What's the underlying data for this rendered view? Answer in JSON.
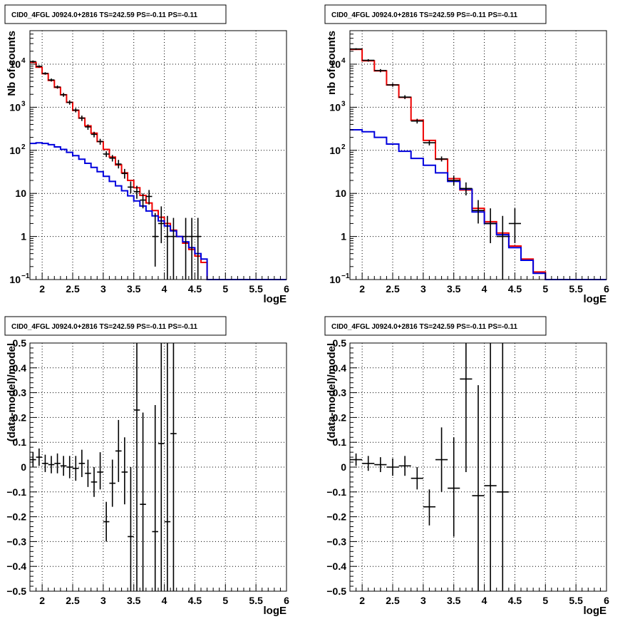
{
  "colors": {
    "model_total": "#ee0000",
    "model_component": "#0000dd",
    "data": "#000000",
    "grid": "#000000"
  },
  "chart_data": [
    {
      "type": "histogram-step",
      "title": "CID0_4FGL J0924.0+2816 TS=242.59 PS=-0.11 PS=-0.11",
      "xlabel": "logE",
      "ylabel": "Nb of counts",
      "log_y": true,
      "grid": true,
      "xlim": [
        1.8,
        6.0
      ],
      "ylim": [
        0.1,
        60000
      ],
      "x_ticks": [
        {
          "v": 2,
          "t": "2"
        },
        {
          "v": 2.5,
          "t": "2.5"
        },
        {
          "v": 3,
          "t": "3"
        },
        {
          "v": 3.5,
          "t": "3.5"
        },
        {
          "v": 4,
          "t": "4"
        },
        {
          "v": 4.5,
          "t": "4.5"
        },
        {
          "v": 5,
          "t": "5"
        },
        {
          "v": 5.5,
          "t": "5.5"
        },
        {
          "v": 6,
          "t": "6"
        }
      ],
      "y_ticks": [
        {
          "v": 0.1,
          "t": "10",
          "e": "−1"
        },
        {
          "v": 1,
          "t": "1"
        },
        {
          "v": 10,
          "t": "10"
        },
        {
          "v": 100,
          "t": "10",
          "e": "2"
        },
        {
          "v": 1000,
          "t": "10",
          "e": "3"
        },
        {
          "v": 10000,
          "t": "10",
          "e": "4"
        }
      ],
      "bin_edges": [
        1.8,
        1.9,
        2.0,
        2.1,
        2.2,
        2.3,
        2.4,
        2.5,
        2.6,
        2.7,
        2.8,
        2.9,
        3.0,
        3.1,
        3.2,
        3.3,
        3.4,
        3.5,
        3.6,
        3.7,
        3.8,
        3.9,
        4.0,
        4.1,
        4.2,
        4.3,
        4.4,
        4.5,
        4.6,
        4.7,
        4.8,
        4.9,
        5.0,
        5.1,
        5.2,
        5.3,
        5.4,
        5.5,
        5.6,
        5.7,
        5.8,
        5.9,
        6.0
      ],
      "series": [
        {
          "role": "total",
          "values": [
            11000,
            8500,
            6000,
            4200,
            2900,
            1950,
            1300,
            850,
            560,
            370,
            250,
            160,
            105,
            70,
            46,
            30,
            20,
            13.5,
            9,
            6,
            4,
            2.8,
            2,
            1.4,
            1,
            0.7,
            0.5,
            0.35,
            0.25,
            0.1,
            0.1,
            0.1,
            0.1,
            0.1,
            0.1,
            0.1,
            0.1,
            0.1,
            0.1,
            0.1,
            0.1,
            0.1
          ]
        },
        {
          "role": "component",
          "values": [
            145,
            150,
            145,
            135,
            120,
            105,
            90,
            75,
            62,
            50,
            40,
            32,
            25,
            19,
            15,
            11.5,
            8.8,
            6.7,
            5.1,
            3.9,
            3.0,
            2.3,
            1.75,
            1.35,
            1.0,
            0.75,
            0.55,
            0.4,
            0.3,
            0.1,
            0.1,
            0.1,
            0.1,
            0.1,
            0.1,
            0.1,
            0.1,
            0.1,
            0.1,
            0.1,
            0.1,
            0.1
          ]
        }
      ],
      "points": [
        {
          "x": 1.85,
          "y": 11500,
          "lo": 10800,
          "hi": 12200
        },
        {
          "x": 1.95,
          "y": 8900,
          "lo": 8350,
          "hi": 9450
        },
        {
          "x": 2.05,
          "y": 6100,
          "lo": 5700,
          "hi": 6500
        },
        {
          "x": 2.15,
          "y": 4300,
          "lo": 3950,
          "hi": 4650
        },
        {
          "x": 2.25,
          "y": 2950,
          "lo": 2700,
          "hi": 3200
        },
        {
          "x": 2.35,
          "y": 1950,
          "lo": 1750,
          "hi": 2150
        },
        {
          "x": 2.45,
          "y": 1300,
          "lo": 1150,
          "hi": 1450
        },
        {
          "x": 2.55,
          "y": 860,
          "lo": 760,
          "hi": 960
        },
        {
          "x": 2.65,
          "y": 560,
          "lo": 480,
          "hi": 640
        },
        {
          "x": 2.75,
          "y": 350,
          "lo": 300,
          "hi": 400
        },
        {
          "x": 2.85,
          "y": 235,
          "lo": 200,
          "hi": 270
        },
        {
          "x": 2.95,
          "y": 160,
          "lo": 135,
          "hi": 185
        },
        {
          "x": 3.05,
          "y": 82,
          "lo": 70,
          "hi": 95
        },
        {
          "x": 3.15,
          "y": 66,
          "lo": 55,
          "hi": 78
        },
        {
          "x": 3.25,
          "y": 48,
          "lo": 38,
          "hi": 60
        },
        {
          "x": 3.35,
          "y": 29,
          "lo": 22,
          "hi": 37
        },
        {
          "x": 3.45,
          "y": 14,
          "lo": 10,
          "hi": 19
        },
        {
          "x": 3.55,
          "y": 11,
          "lo": 7.5,
          "hi": 15
        },
        {
          "x": 3.65,
          "y": 7,
          "lo": 4.5,
          "hi": 10
        },
        {
          "x": 3.75,
          "y": 8.5,
          "lo": 5.5,
          "hi": 12
        },
        {
          "x": 3.85,
          "y": 1,
          "lo": 0.2,
          "hi": 3.5
        },
        {
          "x": 3.95,
          "y": 2,
          "lo": 0.7,
          "hi": 5
        },
        {
          "x": 4.05,
          "y": 1,
          "lo": 0.1,
          "hi": 3
        },
        {
          "x": 4.15,
          "y": 1,
          "lo": 0.1,
          "hi": 2.7
        },
        {
          "x": 4.35,
          "y": 1,
          "lo": 0.1,
          "hi": 2.7
        },
        {
          "x": 4.45,
          "y": 1,
          "lo": 0.1,
          "hi": 2.7
        },
        {
          "x": 4.55,
          "y": 1,
          "lo": 0.1,
          "hi": 2.7
        }
      ]
    },
    {
      "type": "histogram-step",
      "title": "CID0_4FGL J0924.0+2816 TS=242.59 PS=-0.11 PS=-0.11",
      "xlabel": "logE",
      "ylabel": "nb of counts",
      "log_y": true,
      "grid": true,
      "xlim": [
        1.8,
        6.0
      ],
      "ylim": [
        0.1,
        60000
      ],
      "x_ticks": [
        {
          "v": 2,
          "t": "2"
        },
        {
          "v": 2.5,
          "t": "2.5"
        },
        {
          "v": 3,
          "t": "3"
        },
        {
          "v": 3.5,
          "t": "3.5"
        },
        {
          "v": 4,
          "t": "4"
        },
        {
          "v": 4.5,
          "t": "4.5"
        },
        {
          "v": 5,
          "t": "5"
        },
        {
          "v": 5.5,
          "t": "5.5"
        },
        {
          "v": 6,
          "t": "6"
        }
      ],
      "y_ticks": [
        {
          "v": 0.1,
          "t": "10",
          "e": "−1"
        },
        {
          "v": 1,
          "t": "1"
        },
        {
          "v": 10,
          "t": "10"
        },
        {
          "v": 100,
          "t": "10",
          "e": "2"
        },
        {
          "v": 1000,
          "t": "10",
          "e": "3"
        },
        {
          "v": 10000,
          "t": "10",
          "e": "4"
        }
      ],
      "bin_edges": [
        1.8,
        2.0,
        2.2,
        2.4,
        2.6,
        2.8,
        3.0,
        3.2,
        3.4,
        3.6,
        3.8,
        4.0,
        4.2,
        4.4,
        4.6,
        4.8,
        5.0,
        5.2,
        5.4,
        5.6,
        5.8,
        6.0
      ],
      "series": [
        {
          "role": "total",
          "values": [
            22000,
            12000,
            7000,
            3300,
            1700,
            500,
            170,
            62,
            22,
            12,
            4.5,
            2.2,
            1.2,
            0.6,
            0.3,
            0.15,
            0.1,
            0.1,
            0.1,
            0.1,
            0.1
          ]
        },
        {
          "role": "component",
          "values": [
            300,
            270,
            200,
            140,
            95,
            65,
            45,
            30,
            19,
            12.5,
            3.7,
            2.0,
            1.1,
            0.55,
            0.28,
            0.14,
            0.1,
            0.1,
            0.1,
            0.1,
            0.1
          ]
        }
      ],
      "points": [
        {
          "x": 1.9,
          "y": 22500,
          "lo": 21500,
          "hi": 23500
        },
        {
          "x": 2.1,
          "y": 12300,
          "lo": 11500,
          "hi": 13100
        },
        {
          "x": 2.3,
          "y": 7100,
          "lo": 6500,
          "hi": 7700
        },
        {
          "x": 2.5,
          "y": 3300,
          "lo": 3000,
          "hi": 3600
        },
        {
          "x": 2.7,
          "y": 1720,
          "lo": 1550,
          "hi": 1900
        },
        {
          "x": 2.9,
          "y": 480,
          "lo": 420,
          "hi": 540
        },
        {
          "x": 3.1,
          "y": 150,
          "lo": 130,
          "hi": 170
        },
        {
          "x": 3.3,
          "y": 63,
          "lo": 55,
          "hi": 72
        },
        {
          "x": 3.5,
          "y": 20,
          "lo": 15,
          "hi": 26
        },
        {
          "x": 3.7,
          "y": 13,
          "lo": 9,
          "hi": 18
        },
        {
          "x": 3.9,
          "y": 4,
          "lo": 2,
          "hi": 7
        },
        {
          "x": 4.1,
          "y": 2,
          "lo": 0.7,
          "hi": 4.5
        },
        {
          "x": 4.3,
          "y": 1,
          "lo": 0.1,
          "hi": 3
        },
        {
          "x": 4.5,
          "y": 2,
          "lo": 0.7,
          "hi": 4.5
        }
      ]
    },
    {
      "type": "scatter-errorbar",
      "title": "CID0_4FGL J0924.0+2816 TS=242.59 PS=-0.11 PS=-0.11",
      "xlabel": "logE",
      "ylabel": "(data-model)/model",
      "log_y": false,
      "grid": true,
      "xlim": [
        1.8,
        6.0
      ],
      "ylim": [
        -0.5,
        0.5
      ],
      "x_ticks": [
        {
          "v": 2,
          "t": "2"
        },
        {
          "v": 2.5,
          "t": "2.5"
        },
        {
          "v": 3,
          "t": "3"
        },
        {
          "v": 3.5,
          "t": "3.5"
        },
        {
          "v": 4,
          "t": "4"
        },
        {
          "v": 4.5,
          "t": "4.5"
        },
        {
          "v": 5,
          "t": "5"
        },
        {
          "v": 5.5,
          "t": "5.5"
        },
        {
          "v": 6,
          "t": "6"
        }
      ],
      "y_ticks": [
        {
          "v": -0.5,
          "t": "−0.5"
        },
        {
          "v": -0.4,
          "t": "−0.4"
        },
        {
          "v": -0.3,
          "t": "−0.3"
        },
        {
          "v": -0.2,
          "t": "−0.2"
        },
        {
          "v": -0.1,
          "t": "−0.1"
        },
        {
          "v": 0,
          "t": "0"
        },
        {
          "v": 0.1,
          "t": "0.1"
        },
        {
          "v": 0.2,
          "t": "0.2"
        },
        {
          "v": 0.3,
          "t": "0.3"
        },
        {
          "v": 0.4,
          "t": "0.4"
        },
        {
          "v": 0.5,
          "t": "0.5"
        }
      ],
      "points": [
        {
          "x": 1.85,
          "y": 0.03,
          "lo": 0.0,
          "hi": 0.06,
          "hw": 0.05
        },
        {
          "x": 1.95,
          "y": 0.04,
          "lo": 0.005,
          "hi": 0.075,
          "hw": 0.05
        },
        {
          "x": 2.05,
          "y": 0.015,
          "lo": -0.02,
          "hi": 0.05,
          "hw": 0.05
        },
        {
          "x": 2.15,
          "y": 0.01,
          "lo": -0.025,
          "hi": 0.045,
          "hw": 0.05
        },
        {
          "x": 2.25,
          "y": 0.015,
          "lo": -0.025,
          "hi": 0.055,
          "hw": 0.05
        },
        {
          "x": 2.35,
          "y": 0.005,
          "lo": -0.035,
          "hi": 0.045,
          "hw": 0.05
        },
        {
          "x": 2.45,
          "y": 0.0,
          "lo": -0.045,
          "hi": 0.045,
          "hw": 0.05
        },
        {
          "x": 2.55,
          "y": -0.005,
          "lo": -0.055,
          "hi": 0.045,
          "hw": 0.05
        },
        {
          "x": 2.65,
          "y": 0.015,
          "lo": -0.04,
          "hi": 0.07,
          "hw": 0.05
        },
        {
          "x": 2.75,
          "y": -0.025,
          "lo": -0.08,
          "hi": 0.03,
          "hw": 0.05
        },
        {
          "x": 2.85,
          "y": -0.06,
          "lo": -0.12,
          "hi": 0.0,
          "hw": 0.05
        },
        {
          "x": 2.95,
          "y": -0.02,
          "lo": -0.09,
          "hi": 0.06,
          "hw": 0.05
        },
        {
          "x": 3.05,
          "y": -0.22,
          "lo": -0.3,
          "hi": -0.14,
          "hw": 0.05
        },
        {
          "x": 3.15,
          "y": -0.065,
          "lo": -0.16,
          "hi": 0.03,
          "hw": 0.05
        },
        {
          "x": 3.25,
          "y": 0.065,
          "lo": -0.06,
          "hi": 0.19,
          "hw": 0.05
        },
        {
          "x": 3.35,
          "y": -0.02,
          "lo": -0.15,
          "hi": 0.12,
          "hw": 0.05
        },
        {
          "x": 3.45,
          "y": -0.28,
          "lo": -0.5,
          "hi": 0.0,
          "hw": 0.05
        },
        {
          "x": 3.55,
          "y": 0.23,
          "lo": -0.5,
          "hi": 0.5,
          "hw": 0.05
        },
        {
          "x": 3.65,
          "y": -0.15,
          "lo": -0.5,
          "hi": 0.22,
          "hw": 0.05
        },
        {
          "x": 3.85,
          "y": -0.26,
          "lo": -0.5,
          "hi": 0.25,
          "hw": 0.05
        },
        {
          "x": 3.95,
          "y": 0.095,
          "lo": -0.5,
          "hi": 0.5,
          "hw": 0.05
        },
        {
          "x": 4.05,
          "y": -0.22,
          "lo": -0.5,
          "hi": 0.5,
          "hw": 0.05
        },
        {
          "x": 4.15,
          "y": 0.135,
          "lo": -0.5,
          "hi": 0.5,
          "hw": 0.05
        }
      ]
    },
    {
      "type": "scatter-errorbar",
      "title": "CID0_4FGL J0924.0+2816 TS=242.59 PS=-0.11 PS=-0.11",
      "xlabel": "logE",
      "ylabel": "(data-model)/model",
      "log_y": false,
      "grid": true,
      "xlim": [
        1.8,
        6.0
      ],
      "ylim": [
        -0.5,
        0.5
      ],
      "x_ticks": [
        {
          "v": 2,
          "t": "2"
        },
        {
          "v": 2.5,
          "t": "2.5"
        },
        {
          "v": 3,
          "t": "3"
        },
        {
          "v": 3.5,
          "t": "3.5"
        },
        {
          "v": 4,
          "t": "4"
        },
        {
          "v": 4.5,
          "t": "4.5"
        },
        {
          "v": 5,
          "t": "5"
        },
        {
          "v": 5.5,
          "t": "5.5"
        },
        {
          "v": 6,
          "t": "6"
        }
      ],
      "y_ticks": [
        {
          "v": -0.5,
          "t": "−0.5"
        },
        {
          "v": -0.4,
          "t": "−0.4"
        },
        {
          "v": -0.3,
          "t": "−0.3"
        },
        {
          "v": -0.2,
          "t": "−0.2"
        },
        {
          "v": -0.1,
          "t": "−0.1"
        },
        {
          "v": 0,
          "t": "0"
        },
        {
          "v": 0.1,
          "t": "0.1"
        },
        {
          "v": 0.2,
          "t": "0.2"
        },
        {
          "v": 0.3,
          "t": "0.3"
        },
        {
          "v": 0.4,
          "t": "0.4"
        },
        {
          "v": 0.5,
          "t": "0.5"
        }
      ],
      "points": [
        {
          "x": 1.9,
          "y": 0.03,
          "lo": 0.005,
          "hi": 0.055,
          "hw": 0.1
        },
        {
          "x": 2.1,
          "y": 0.015,
          "lo": -0.015,
          "hi": 0.045,
          "hw": 0.1
        },
        {
          "x": 2.3,
          "y": 0.01,
          "lo": -0.02,
          "hi": 0.04,
          "hw": 0.1
        },
        {
          "x": 2.5,
          "y": 0.0,
          "lo": -0.035,
          "hi": 0.035,
          "hw": 0.1
        },
        {
          "x": 2.7,
          "y": 0.005,
          "lo": -0.035,
          "hi": 0.045,
          "hw": 0.1
        },
        {
          "x": 2.9,
          "y": -0.045,
          "lo": -0.09,
          "hi": 0.0,
          "hw": 0.1
        },
        {
          "x": 3.1,
          "y": -0.16,
          "lo": -0.235,
          "hi": -0.09,
          "hw": 0.1
        },
        {
          "x": 3.3,
          "y": 0.03,
          "lo": -0.1,
          "hi": 0.16,
          "hw": 0.1
        },
        {
          "x": 3.5,
          "y": -0.085,
          "lo": -0.28,
          "hi": 0.12,
          "hw": 0.1
        },
        {
          "x": 3.7,
          "y": 0.355,
          "lo": -0.02,
          "hi": 0.5,
          "hw": 0.1
        },
        {
          "x": 3.9,
          "y": -0.115,
          "lo": -0.5,
          "hi": 0.33,
          "hw": 0.1
        },
        {
          "x": 4.1,
          "y": -0.075,
          "lo": -0.5,
          "hi": 0.5,
          "hw": 0.1
        },
        {
          "x": 4.3,
          "y": -0.1,
          "lo": -0.5,
          "hi": 0.5,
          "hw": 0.1
        }
      ]
    }
  ]
}
